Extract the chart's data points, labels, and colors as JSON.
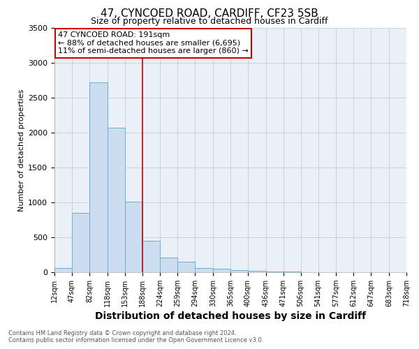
{
  "title_line1": "47, CYNCOED ROAD, CARDIFF, CF23 5SB",
  "title_line2": "Size of property relative to detached houses in Cardiff",
  "xlabel": "Distribution of detached houses by size in Cardiff",
  "ylabel": "Number of detached properties",
  "footnote_line1": "Contains HM Land Registry data © Crown copyright and database right 2024.",
  "footnote_line2": "Contains public sector information licensed under the Open Government Licence v3.0.",
  "annotation_line1": "47 CYNCOED ROAD: 191sqm",
  "annotation_line2": "← 88% of detached houses are smaller (6,695)",
  "annotation_line3": "11% of semi-detached houses are larger (860) →",
  "bar_left_edges": [
    12,
    47,
    82,
    118,
    153,
    188,
    224,
    259,
    294,
    330,
    365,
    400,
    436,
    471,
    506,
    541,
    577,
    612,
    647,
    683
  ],
  "bar_widths": [
    35,
    35,
    36,
    35,
    35,
    36,
    35,
    35,
    36,
    35,
    35,
    36,
    35,
    35,
    35,
    36,
    35,
    35,
    36,
    35
  ],
  "bar_heights": [
    60,
    850,
    2720,
    2070,
    1010,
    450,
    210,
    150,
    60,
    55,
    30,
    20,
    15,
    10,
    5,
    4,
    3,
    2,
    1,
    1
  ],
  "bar_color": "#ccddf0",
  "bar_edgecolor": "#6baed6",
  "vline_x": 188,
  "vline_color": "#cc0000",
  "ylim": [
    0,
    3500
  ],
  "yticks": [
    0,
    500,
    1000,
    1500,
    2000,
    2500,
    3000,
    3500
  ],
  "xtick_labels": [
    "12sqm",
    "47sqm",
    "82sqm",
    "118sqm",
    "153sqm",
    "188sqm",
    "224sqm",
    "259sqm",
    "294sqm",
    "330sqm",
    "365sqm",
    "400sqm",
    "436sqm",
    "471sqm",
    "506sqm",
    "541sqm",
    "577sqm",
    "612sqm",
    "647sqm",
    "683sqm",
    "718sqm"
  ],
  "grid_color": "#cccccc",
  "bg_color": "#ffffff",
  "plot_bg_color": "#eaf0f8",
  "annotation_box_edgecolor": "#cc0000",
  "annotation_box_facecolor": "#ffffff",
  "title1_fontsize": 11,
  "title2_fontsize": 9,
  "xlabel_fontsize": 10,
  "ylabel_fontsize": 8,
  "tick_fontsize": 7,
  "footnote_fontsize": 6,
  "annotation_fontsize": 8
}
